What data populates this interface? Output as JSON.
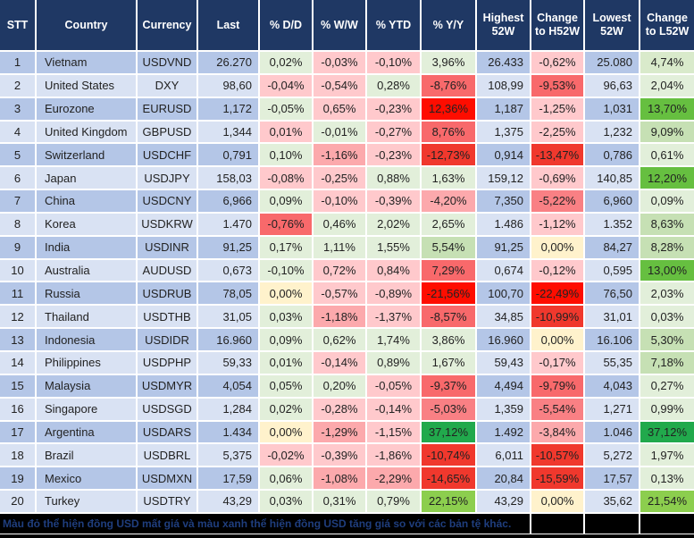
{
  "colors": {
    "header_bg": "#1F3864",
    "header_text": "#FFFFFF",
    "row_odd_bg": "#B4C6E7",
    "row_even_bg": "#D9E2F3",
    "grid_line": "#FFFFFF",
    "cell_text": "#222222",
    "zero_bg": "#FFF2CC",
    "footer_bg": "#000000",
    "footer_text": "#1F3E7E",
    "green_scale": [
      "#E2EFDA",
      "#D9EACB",
      "#C6E0B4",
      "#8CCE4E",
      "#66BF40",
      "#21A94C"
    ],
    "red_scale": [
      "#FFC9CC",
      "#FCA9AC",
      "#F98084",
      "#F8696B",
      "#F0382D",
      "#FE0D00"
    ]
  },
  "table": {
    "columns": [
      {
        "label": "STT"
      },
      {
        "label": "Country"
      },
      {
        "label": "Currency"
      },
      {
        "label": "Last"
      },
      {
        "label": "% D/D"
      },
      {
        "label": "% W/W"
      },
      {
        "label": "% YTD"
      },
      {
        "label": "% Y/Y"
      },
      {
        "label": "Highest 52W"
      },
      {
        "label": "Change to H52W"
      },
      {
        "label": "Lowest 52W"
      },
      {
        "label": "Change to L52W"
      }
    ],
    "rows": [
      {
        "stt": "1",
        "country": "Vietnam",
        "currency": "USDVND",
        "last": "26.270",
        "pct_dd": {
          "v": "0,02%",
          "bg": "#E2EFDA"
        },
        "pct_ww": {
          "v": "-0,03%",
          "bg": "#FFC9CC"
        },
        "pct_ytd": {
          "v": "-0,10%",
          "bg": "#FFC9CC"
        },
        "pct_yy": {
          "v": "3,96%",
          "bg": "#E2EFDA"
        },
        "high52": "26.433",
        "chg_h52": {
          "v": "-0,62%",
          "bg": "#FFC9CC"
        },
        "low52": "25.080",
        "chg_l52": {
          "v": "4,74%",
          "bg": "#D9EACB"
        }
      },
      {
        "stt": "2",
        "country": "United States",
        "currency": "DXY",
        "last": "98,60",
        "pct_dd": {
          "v": "-0,04%",
          "bg": "#FFC9CC"
        },
        "pct_ww": {
          "v": "-0,54%",
          "bg": "#FFC9CC"
        },
        "pct_ytd": {
          "v": "0,28%",
          "bg": "#E2EFDA"
        },
        "pct_yy": {
          "v": "-8,76%",
          "bg": "#F8696B"
        },
        "high52": "108,99",
        "chg_h52": {
          "v": "-9,53%",
          "bg": "#F8696B"
        },
        "low52": "96,63",
        "chg_l52": {
          "v": "2,04%",
          "bg": "#E2EFDA"
        }
      },
      {
        "stt": "3",
        "country": "Eurozone",
        "currency": "EURUSD",
        "last": "1,172",
        "pct_dd": {
          "v": "-0,05%",
          "bg": "#E2EFDA"
        },
        "pct_ww": {
          "v": "0,65%",
          "bg": "#FFC9CC"
        },
        "pct_ytd": {
          "v": "-0,23%",
          "bg": "#FFC9CC"
        },
        "pct_yy": {
          "v": "12,36%",
          "bg": "#FE0D00"
        },
        "high52": "1,187",
        "chg_h52": {
          "v": "-1,25%",
          "bg": "#FFC9CC"
        },
        "low52": "1,031",
        "chg_l52": {
          "v": "13,70%",
          "bg": "#66BF40"
        }
      },
      {
        "stt": "4",
        "country": "United Kingdom",
        "currency": "GBPUSD",
        "last": "1,344",
        "pct_dd": {
          "v": "0,01%",
          "bg": "#FFC9CC"
        },
        "pct_ww": {
          "v": "-0,01%",
          "bg": "#E2EFDA"
        },
        "pct_ytd": {
          "v": "-0,27%",
          "bg": "#FFC9CC"
        },
        "pct_yy": {
          "v": "8,76%",
          "bg": "#F8696B"
        },
        "high52": "1,375",
        "chg_h52": {
          "v": "-2,25%",
          "bg": "#FFC9CC"
        },
        "low52": "1,232",
        "chg_l52": {
          "v": "9,09%",
          "bg": "#C6E0B4"
        }
      },
      {
        "stt": "5",
        "country": "Switzerland",
        "currency": "USDCHF",
        "last": "0,791",
        "pct_dd": {
          "v": "0,10%",
          "bg": "#E2EFDA"
        },
        "pct_ww": {
          "v": "-1,16%",
          "bg": "#FCA9AC"
        },
        "pct_ytd": {
          "v": "-0,23%",
          "bg": "#FFC9CC"
        },
        "pct_yy": {
          "v": "-12,73%",
          "bg": "#F0382D"
        },
        "high52": "0,914",
        "chg_h52": {
          "v": "-13,47%",
          "bg": "#F0382D"
        },
        "low52": "0,786",
        "chg_l52": {
          "v": "0,61%",
          "bg": "#E2EFDA"
        }
      },
      {
        "stt": "6",
        "country": "Japan",
        "currency": "USDJPY",
        "last": "158,03",
        "pct_dd": {
          "v": "-0,08%",
          "bg": "#FFC9CC"
        },
        "pct_ww": {
          "v": "-0,25%",
          "bg": "#FFC9CC"
        },
        "pct_ytd": {
          "v": "0,88%",
          "bg": "#E2EFDA"
        },
        "pct_yy": {
          "v": "1,63%",
          "bg": "#E2EFDA"
        },
        "high52": "159,12",
        "chg_h52": {
          "v": "-0,69%",
          "bg": "#FFC9CC"
        },
        "low52": "140,85",
        "chg_l52": {
          "v": "12,20%",
          "bg": "#66BF40"
        }
      },
      {
        "stt": "7",
        "country": "China",
        "currency": "USDCNY",
        "last": "6,966",
        "pct_dd": {
          "v": "0,09%",
          "bg": "#E2EFDA"
        },
        "pct_ww": {
          "v": "-0,10%",
          "bg": "#FFC9CC"
        },
        "pct_ytd": {
          "v": "-0,39%",
          "bg": "#FFC9CC"
        },
        "pct_yy": {
          "v": "-4,20%",
          "bg": "#FCA9AC"
        },
        "high52": "7,350",
        "chg_h52": {
          "v": "-5,22%",
          "bg": "#F98084"
        },
        "low52": "6,960",
        "chg_l52": {
          "v": "0,09%",
          "bg": "#E2EFDA"
        }
      },
      {
        "stt": "8",
        "country": "Korea",
        "currency": "USDKRW",
        "last": "1.470",
        "pct_dd": {
          "v": "-0,76%",
          "bg": "#F8696B"
        },
        "pct_ww": {
          "v": "0,46%",
          "bg": "#E2EFDA"
        },
        "pct_ytd": {
          "v": "2,02%",
          "bg": "#E2EFDA"
        },
        "pct_yy": {
          "v": "2,65%",
          "bg": "#E2EFDA"
        },
        "high52": "1.486",
        "chg_h52": {
          "v": "-1,12%",
          "bg": "#FFC9CC"
        },
        "low52": "1.352",
        "chg_l52": {
          "v": "8,63%",
          "bg": "#C6E0B4"
        }
      },
      {
        "stt": "9",
        "country": "India",
        "currency": "USDINR",
        "last": "91,25",
        "pct_dd": {
          "v": "0,17%",
          "bg": "#E2EFDA"
        },
        "pct_ww": {
          "v": "1,11%",
          "bg": "#E2EFDA"
        },
        "pct_ytd": {
          "v": "1,55%",
          "bg": "#E2EFDA"
        },
        "pct_yy": {
          "v": "5,54%",
          "bg": "#C6E0B4"
        },
        "high52": "91,25",
        "chg_h52": {
          "v": "0,00%",
          "bg": "#FFF2CC"
        },
        "low52": "84,27",
        "chg_l52": {
          "v": "8,28%",
          "bg": "#C6E0B4"
        }
      },
      {
        "stt": "10",
        "country": "Australia",
        "currency": "AUDUSD",
        "last": "0,673",
        "pct_dd": {
          "v": "-0,10%",
          "bg": "#E2EFDA"
        },
        "pct_ww": {
          "v": "0,72%",
          "bg": "#FFC9CC"
        },
        "pct_ytd": {
          "v": "0,84%",
          "bg": "#FFC9CC"
        },
        "pct_yy": {
          "v": "7,29%",
          "bg": "#F8696B"
        },
        "high52": "0,674",
        "chg_h52": {
          "v": "-0,12%",
          "bg": "#FFC9CC"
        },
        "low52": "0,595",
        "chg_l52": {
          "v": "13,00%",
          "bg": "#66BF40"
        }
      },
      {
        "stt": "11",
        "country": "Russia",
        "currency": "USDRUB",
        "last": "78,05",
        "pct_dd": {
          "v": "0,00%",
          "bg": "#FFF2CC"
        },
        "pct_ww": {
          "v": "-0,57%",
          "bg": "#FFC9CC"
        },
        "pct_ytd": {
          "v": "-0,89%",
          "bg": "#FFC9CC"
        },
        "pct_yy": {
          "v": "-21,56%",
          "bg": "#FE0D00"
        },
        "high52": "100,70",
        "chg_h52": {
          "v": "-22,49%",
          "bg": "#FE0D00"
        },
        "low52": "76,50",
        "chg_l52": {
          "v": "2,03%",
          "bg": "#E2EFDA"
        }
      },
      {
        "stt": "12",
        "country": "Thailand",
        "currency": "USDTHB",
        "last": "31,05",
        "pct_dd": {
          "v": "0,03%",
          "bg": "#E2EFDA"
        },
        "pct_ww": {
          "v": "-1,18%",
          "bg": "#FCA9AC"
        },
        "pct_ytd": {
          "v": "-1,37%",
          "bg": "#FFC9CC"
        },
        "pct_yy": {
          "v": "-8,57%",
          "bg": "#F8696B"
        },
        "high52": "34,85",
        "chg_h52": {
          "v": "-10,99%",
          "bg": "#F0382D"
        },
        "low52": "31,01",
        "chg_l52": {
          "v": "0,03%",
          "bg": "#E2EFDA"
        }
      },
      {
        "stt": "13",
        "country": "Indonesia",
        "currency": "USDIDR",
        "last": "16.960",
        "pct_dd": {
          "v": "0,09%",
          "bg": "#E2EFDA"
        },
        "pct_ww": {
          "v": "0,62%",
          "bg": "#E2EFDA"
        },
        "pct_ytd": {
          "v": "1,74%",
          "bg": "#E2EFDA"
        },
        "pct_yy": {
          "v": "3,86%",
          "bg": "#E2EFDA"
        },
        "high52": "16.960",
        "chg_h52": {
          "v": "0,00%",
          "bg": "#FFF2CC"
        },
        "low52": "16.106",
        "chg_l52": {
          "v": "5,30%",
          "bg": "#C6E0B4"
        }
      },
      {
        "stt": "14",
        "country": "Philippines",
        "currency": "USDPHP",
        "last": "59,33",
        "pct_dd": {
          "v": "0,01%",
          "bg": "#E2EFDA"
        },
        "pct_ww": {
          "v": "-0,14%",
          "bg": "#FFC9CC"
        },
        "pct_ytd": {
          "v": "0,89%",
          "bg": "#E2EFDA"
        },
        "pct_yy": {
          "v": "1,67%",
          "bg": "#E2EFDA"
        },
        "high52": "59,43",
        "chg_h52": {
          "v": "-0,17%",
          "bg": "#FFC9CC"
        },
        "low52": "55,35",
        "chg_l52": {
          "v": "7,18%",
          "bg": "#C6E0B4"
        }
      },
      {
        "stt": "15",
        "country": "Malaysia",
        "currency": "USDMYR",
        "last": "4,054",
        "pct_dd": {
          "v": "0,05%",
          "bg": "#E2EFDA"
        },
        "pct_ww": {
          "v": "0,20%",
          "bg": "#E2EFDA"
        },
        "pct_ytd": {
          "v": "-0,05%",
          "bg": "#FFC9CC"
        },
        "pct_yy": {
          "v": "-9,37%",
          "bg": "#F8696B"
        },
        "high52": "4,494",
        "chg_h52": {
          "v": "-9,79%",
          "bg": "#F8696B"
        },
        "low52": "4,043",
        "chg_l52": {
          "v": "0,27%",
          "bg": "#E2EFDA"
        }
      },
      {
        "stt": "16",
        "country": "Singapore",
        "currency": "USDSGD",
        "last": "1,284",
        "pct_dd": {
          "v": "0,02%",
          "bg": "#E2EFDA"
        },
        "pct_ww": {
          "v": "-0,28%",
          "bg": "#FFC9CC"
        },
        "pct_ytd": {
          "v": "-0,14%",
          "bg": "#FFC9CC"
        },
        "pct_yy": {
          "v": "-5,03%",
          "bg": "#F98084"
        },
        "high52": "1,359",
        "chg_h52": {
          "v": "-5,54%",
          "bg": "#F98084"
        },
        "low52": "1,271",
        "chg_l52": {
          "v": "0,99%",
          "bg": "#E2EFDA"
        }
      },
      {
        "stt": "17",
        "country": "Argentina",
        "currency": "USDARS",
        "last": "1.434",
        "pct_dd": {
          "v": "0,00%",
          "bg": "#FFF2CC"
        },
        "pct_ww": {
          "v": "-1,29%",
          "bg": "#FCA9AC"
        },
        "pct_ytd": {
          "v": "-1,15%",
          "bg": "#FFC9CC"
        },
        "pct_yy": {
          "v": "37,12%",
          "bg": "#21A94C"
        },
        "high52": "1.492",
        "chg_h52": {
          "v": "-3,84%",
          "bg": "#FCA9AC"
        },
        "low52": "1.046",
        "chg_l52": {
          "v": "37,12%",
          "bg": "#21A94C"
        }
      },
      {
        "stt": "18",
        "country": "Brazil",
        "currency": "USDBRL",
        "last": "5,375",
        "pct_dd": {
          "v": "-0,02%",
          "bg": "#FFC9CC"
        },
        "pct_ww": {
          "v": "-0,39%",
          "bg": "#FFC9CC"
        },
        "pct_ytd": {
          "v": "-1,86%",
          "bg": "#FFC9CC"
        },
        "pct_yy": {
          "v": "-10,74%",
          "bg": "#F0382D"
        },
        "high52": "6,011",
        "chg_h52": {
          "v": "-10,57%",
          "bg": "#F0382D"
        },
        "low52": "5,272",
        "chg_l52": {
          "v": "1,97%",
          "bg": "#E2EFDA"
        }
      },
      {
        "stt": "19",
        "country": "Mexico",
        "currency": "USDMXN",
        "last": "17,59",
        "pct_dd": {
          "v": "0,06%",
          "bg": "#E2EFDA"
        },
        "pct_ww": {
          "v": "-1,08%",
          "bg": "#FCA9AC"
        },
        "pct_ytd": {
          "v": "-2,29%",
          "bg": "#FCA9AC"
        },
        "pct_yy": {
          "v": "-14,65%",
          "bg": "#F0382D"
        },
        "high52": "20,84",
        "chg_h52": {
          "v": "-15,59%",
          "bg": "#F0382D"
        },
        "low52": "17,57",
        "chg_l52": {
          "v": "0,13%",
          "bg": "#E2EFDA"
        }
      },
      {
        "stt": "20",
        "country": "Turkey",
        "currency": "USDTRY",
        "last": "43,29",
        "pct_dd": {
          "v": "0,03%",
          "bg": "#E2EFDA"
        },
        "pct_ww": {
          "v": "0,31%",
          "bg": "#E2EFDA"
        },
        "pct_ytd": {
          "v": "0,79%",
          "bg": "#E2EFDA"
        },
        "pct_yy": {
          "v": "22,15%",
          "bg": "#8CCE4E"
        },
        "high52": "43,29",
        "chg_h52": {
          "v": "0,00%",
          "bg": "#FFF2CC"
        },
        "low52": "35,62",
        "chg_l52": {
          "v": "21,54%",
          "bg": "#8CCE4E"
        }
      }
    ],
    "footer_note": "Màu đỏ thể hiện đồng USD mất giá và màu xanh thể hiện đồng USD tăng giá so với các bản tệ khác."
  }
}
